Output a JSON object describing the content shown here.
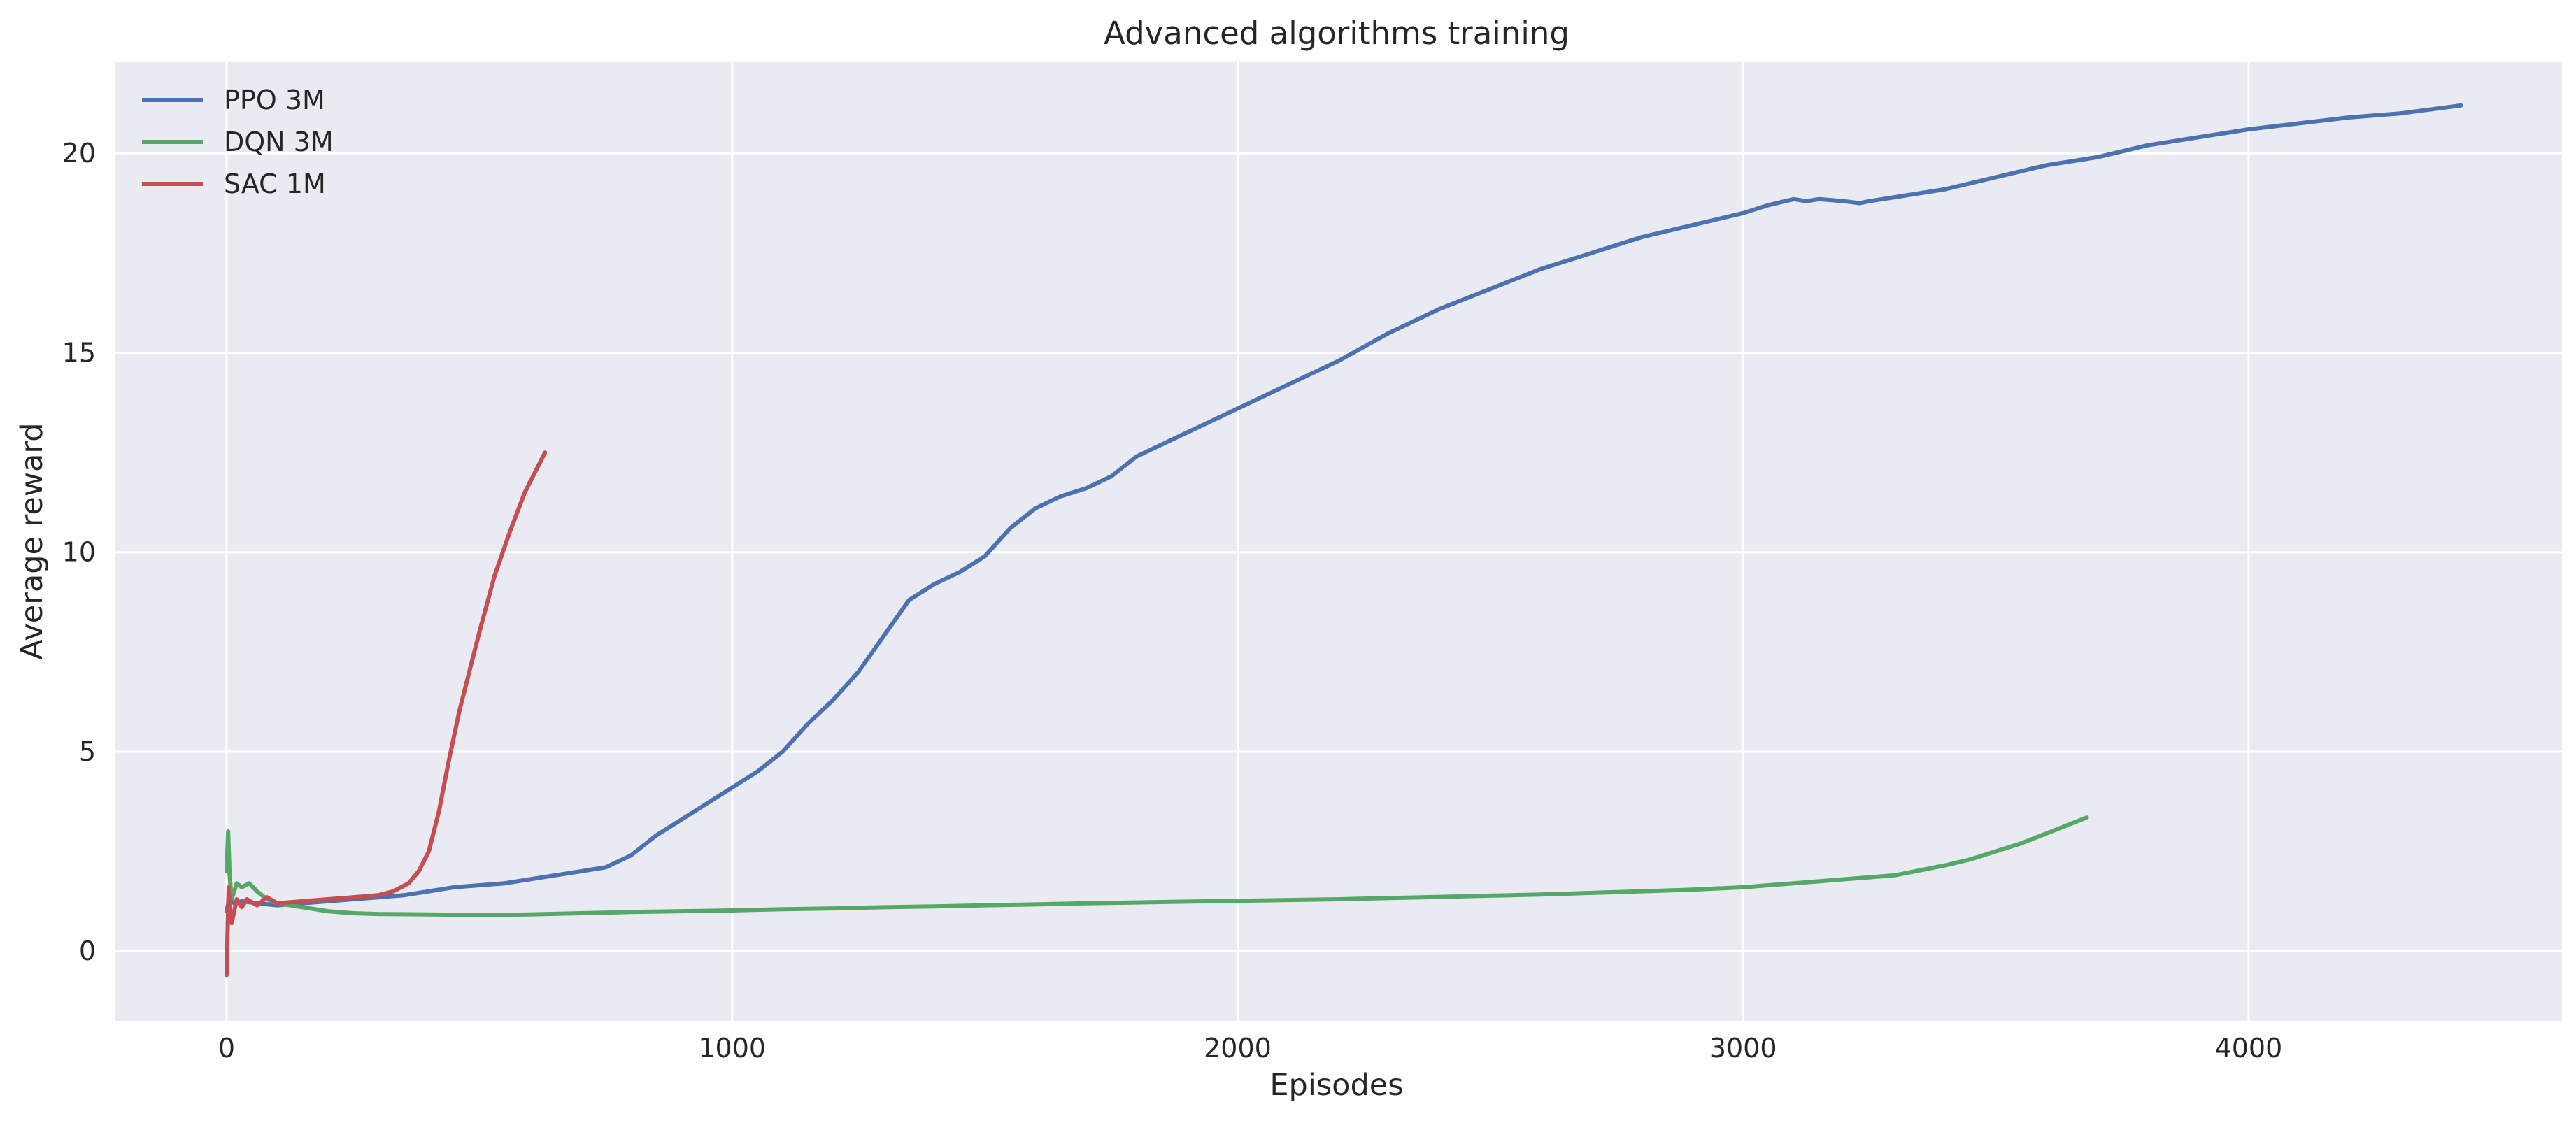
{
  "chart_data": {
    "type": "line",
    "title": "Advanced algorithms training",
    "xlabel": "Episodes",
    "ylabel": "Average reward",
    "xlim": [
      -220,
      4620
    ],
    "ylim": [
      -1.75,
      22.3
    ],
    "xticks": [
      0,
      1000,
      2000,
      3000,
      4000
    ],
    "yticks": [
      0,
      5,
      10,
      15,
      20
    ],
    "xtick_labels": [
      "0",
      "1000",
      "2000",
      "3000",
      "4000"
    ],
    "ytick_labels": [
      "0",
      "5",
      "10",
      "15",
      "20"
    ],
    "grid": true,
    "legend_position": "top-left",
    "background": "#eaeaf2",
    "series": [
      {
        "name": "PPO 3M",
        "color": "#4c72b0",
        "x": [
          0,
          5,
          15,
          30,
          60,
          100,
          150,
          200,
          250,
          300,
          350,
          400,
          450,
          500,
          550,
          600,
          650,
          700,
          750,
          800,
          850,
          900,
          950,
          1000,
          1050,
          1100,
          1150,
          1200,
          1250,
          1300,
          1350,
          1400,
          1450,
          1500,
          1550,
          1600,
          1650,
          1700,
          1750,
          1800,
          1900,
          2000,
          2100,
          2200,
          2300,
          2400,
          2500,
          2600,
          2700,
          2800,
          2900,
          3000,
          3050,
          3100,
          3125,
          3150,
          3200,
          3230,
          3250,
          3300,
          3400,
          3500,
          3600,
          3700,
          3800,
          3900,
          4000,
          4100,
          4200,
          4300,
          4420
        ],
        "y": [
          1.0,
          1.3,
          1.2,
          1.25,
          1.2,
          1.15,
          1.2,
          1.25,
          1.3,
          1.35,
          1.4,
          1.5,
          1.6,
          1.65,
          1.7,
          1.8,
          1.9,
          2.0,
          2.1,
          2.4,
          2.9,
          3.3,
          3.7,
          4.1,
          4.5,
          5.0,
          5.7,
          6.3,
          7.0,
          7.9,
          8.8,
          9.2,
          9.5,
          9.9,
          10.6,
          11.1,
          11.4,
          11.6,
          11.9,
          12.4,
          13.0,
          13.6,
          14.2,
          14.8,
          15.5,
          16.1,
          16.6,
          17.1,
          17.5,
          17.9,
          18.2,
          18.5,
          18.7,
          18.85,
          18.8,
          18.85,
          18.8,
          18.75,
          18.8,
          18.9,
          19.1,
          19.4,
          19.7,
          19.9,
          20.2,
          20.4,
          20.6,
          20.75,
          20.9,
          21.0,
          21.2
        ]
      },
      {
        "name": "DQN 3M",
        "color": "#55a868",
        "x": [
          0,
          3,
          6,
          10,
          20,
          30,
          45,
          60,
          80,
          100,
          150,
          200,
          250,
          300,
          400,
          500,
          600,
          700,
          800,
          900,
          1000,
          1100,
          1200,
          1300,
          1400,
          1500,
          1600,
          1700,
          1800,
          1900,
          2000,
          2100,
          2200,
          2300,
          2400,
          2500,
          2600,
          2700,
          2800,
          2900,
          3000,
          3100,
          3200,
          3300,
          3400,
          3450,
          3500,
          3550,
          3600,
          3650,
          3680
        ],
        "y": [
          2.0,
          3.0,
          1.9,
          1.3,
          1.7,
          1.6,
          1.7,
          1.5,
          1.3,
          1.2,
          1.1,
          1.0,
          0.95,
          0.93,
          0.92,
          0.9,
          0.92,
          0.95,
          0.98,
          1.0,
          1.02,
          1.05,
          1.07,
          1.1,
          1.12,
          1.15,
          1.17,
          1.2,
          1.22,
          1.24,
          1.26,
          1.28,
          1.3,
          1.33,
          1.36,
          1.39,
          1.42,
          1.46,
          1.5,
          1.54,
          1.6,
          1.7,
          1.8,
          1.9,
          2.15,
          2.3,
          2.5,
          2.7,
          2.95,
          3.2,
          3.35
        ]
      },
      {
        "name": "SAC 1M",
        "color": "#c44e52",
        "x": [
          0,
          2,
          4,
          6,
          10,
          15,
          20,
          30,
          40,
          60,
          80,
          100,
          150,
          200,
          250,
          300,
          330,
          360,
          380,
          400,
          420,
          440,
          460,
          480,
          500,
          530,
          560,
          590,
          630
        ],
        "y": [
          -0.6,
          0.5,
          1.6,
          1.0,
          0.7,
          1.0,
          1.3,
          1.1,
          1.3,
          1.15,
          1.35,
          1.2,
          1.25,
          1.3,
          1.35,
          1.4,
          1.5,
          1.7,
          2.0,
          2.5,
          3.5,
          4.8,
          6.0,
          7.0,
          8.0,
          9.4,
          10.5,
          11.5,
          12.5
        ]
      }
    ]
  }
}
